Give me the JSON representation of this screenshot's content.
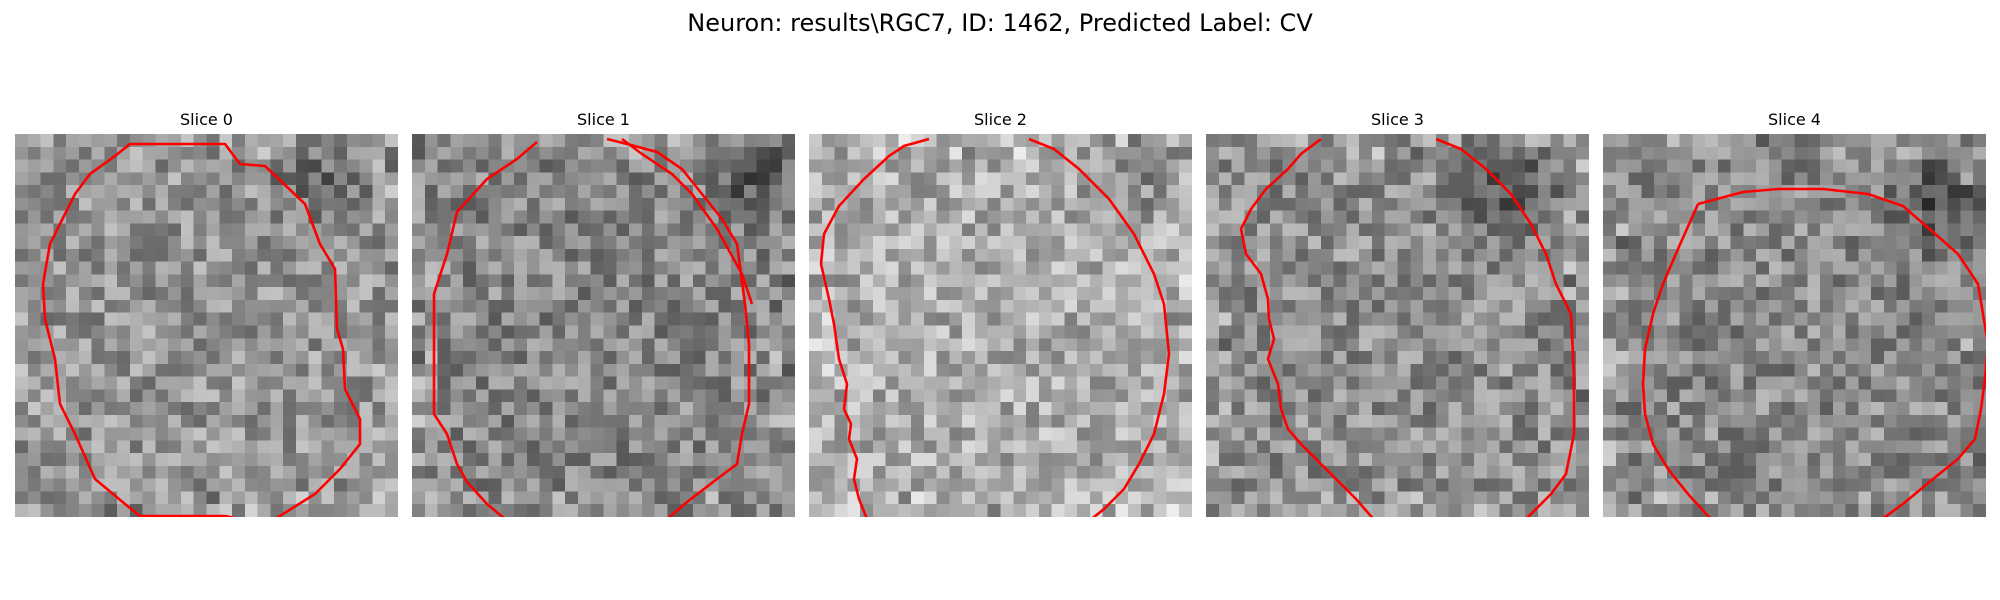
{
  "figure": {
    "title": "Neuron: results\\RGC7, ID: 1462, Predicted Label: CV"
  },
  "panels": [
    {
      "title": "Slice 0",
      "contour_color": "#ff0000"
    },
    {
      "title": "Slice 1",
      "contour_color": "#ff0000"
    },
    {
      "title": "Slice 2",
      "contour_color": "#ff0000"
    },
    {
      "title": "Slice 3",
      "contour_color": "#ff0000"
    },
    {
      "title": "Slice 4",
      "contour_color": "#ff0000"
    }
  ],
  "colormap": "gray"
}
